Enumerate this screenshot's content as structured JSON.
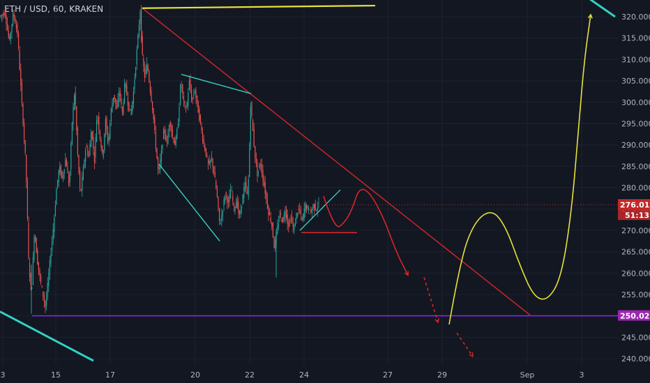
{
  "header": {
    "title": "ETH / USD, 60, KRAKEN"
  },
  "colors": {
    "background": "#131722",
    "up": "#26a69a",
    "down": "#ef5350",
    "grid": "#1e2230",
    "axis_text": "#b2b5be",
    "trendline_red": "#d62728",
    "cyan": "#33d1c4",
    "yellow": "#e7e33a",
    "purple": "#8e24ff",
    "price_badge": "#c62828",
    "support_badge": "#9c27b0"
  },
  "chart_data": {
    "type": "candlestick",
    "symbol": "ETH / USD",
    "interval": "60",
    "exchange": "KRAKEN",
    "ylim": [
      238.5,
      325
    ],
    "x_ticks": [
      "3",
      "15",
      "17",
      "20",
      "22",
      "24",
      "27",
      "29",
      "Sep",
      "3"
    ],
    "y_ticks": [
      "240.000",
      "245.000",
      "250.000",
      "255.000",
      "260.000",
      "265.000",
      "270.000",
      "275.000",
      "280.000",
      "285.000",
      "290.000",
      "295.000",
      "300.000",
      "305.000",
      "310.000",
      "315.000",
      "320.000"
    ],
    "y_tick_values": [
      240,
      245,
      250,
      255,
      260,
      265,
      270,
      275,
      280,
      285,
      290,
      295,
      300,
      305,
      310,
      315,
      320
    ],
    "last_price": {
      "label": "276.010",
      "value": 276.01,
      "countdown": "51:13"
    },
    "support_level": {
      "label": "250.023",
      "value": 250.023
    },
    "price_path": [
      [
        0,
        320
      ],
      [
        8,
        321
      ],
      [
        14,
        314
      ],
      [
        20,
        321
      ],
      [
        26,
        316
      ],
      [
        32,
        300
      ],
      [
        38,
        285
      ],
      [
        42,
        262
      ],
      [
        46,
        255
      ],
      [
        50,
        270
      ],
      [
        55,
        262
      ],
      [
        60,
        257
      ],
      [
        66,
        252
      ],
      [
        72,
        262
      ],
      [
        78,
        272
      ],
      [
        82,
        280
      ],
      [
        86,
        285
      ],
      [
        90,
        282
      ],
      [
        95,
        287
      ],
      [
        100,
        280
      ],
      [
        104,
        295
      ],
      [
        108,
        303
      ],
      [
        112,
        288
      ],
      [
        116,
        278
      ],
      [
        120,
        284
      ],
      [
        124,
        290
      ],
      [
        128,
        287
      ],
      [
        132,
        294
      ],
      [
        136,
        286
      ],
      [
        140,
        298
      ],
      [
        144,
        292
      ],
      [
        148,
        287
      ],
      [
        152,
        296
      ],
      [
        156,
        290
      ],
      [
        160,
        298
      ],
      [
        164,
        302
      ],
      [
        168,
        298
      ],
      [
        172,
        303
      ],
      [
        176,
        297
      ],
      [
        180,
        305
      ],
      [
        184,
        300
      ],
      [
        188,
        297
      ],
      [
        192,
        302
      ],
      [
        196,
        310
      ],
      [
        200,
        318
      ],
      [
        202,
        322
      ],
      [
        204,
        312
      ],
      [
        208,
        306
      ],
      [
        212,
        309
      ],
      [
        216,
        303
      ],
      [
        220,
        298
      ],
      [
        224,
        290
      ],
      [
        228,
        283
      ],
      [
        232,
        288
      ],
      [
        236,
        294
      ],
      [
        240,
        290
      ],
      [
        244,
        296
      ],
      [
        248,
        292
      ],
      [
        252,
        290
      ],
      [
        256,
        295
      ],
      [
        260,
        305
      ],
      [
        264,
        300
      ],
      [
        268,
        298
      ],
      [
        272,
        305
      ],
      [
        276,
        300
      ],
      [
        280,
        303
      ],
      [
        284,
        299
      ],
      [
        288,
        295
      ],
      [
        292,
        291
      ],
      [
        296,
        288
      ],
      [
        300,
        285
      ],
      [
        304,
        287
      ],
      [
        308,
        283
      ],
      [
        312,
        278
      ],
      [
        316,
        271
      ],
      [
        320,
        275
      ],
      [
        324,
        279
      ],
      [
        328,
        276
      ],
      [
        332,
        280
      ],
      [
        336,
        275
      ],
      [
        340,
        277
      ],
      [
        344,
        273
      ],
      [
        348,
        277
      ],
      [
        352,
        281
      ],
      [
        356,
        278
      ],
      [
        358,
        286
      ],
      [
        360,
        300
      ],
      [
        363,
        294
      ],
      [
        366,
        288
      ],
      [
        370,
        283
      ],
      [
        374,
        286
      ],
      [
        378,
        282
      ],
      [
        382,
        278
      ],
      [
        386,
        274
      ],
      [
        390,
        272
      ],
      [
        394,
        266
      ],
      [
        398,
        270
      ],
      [
        402,
        274
      ],
      [
        406,
        272
      ],
      [
        410,
        275
      ],
      [
        414,
        271
      ],
      [
        418,
        273
      ],
      [
        422,
        270
      ],
      [
        426,
        274
      ],
      [
        430,
        275
      ],
      [
        434,
        272
      ],
      [
        438,
        276
      ],
      [
        442,
        275
      ],
      [
        446,
        274
      ],
      [
        450,
        276
      ],
      [
        454,
        275
      ],
      [
        458,
        276
      ]
    ],
    "trendlines": [
      {
        "name": "descending-resistance",
        "color": "red",
        "from": [
          204,
          322
        ],
        "to": [
          760,
          250.2
        ]
      },
      {
        "name": "top-horizontal",
        "color": "yellow",
        "from": [
          204,
          322
        ],
        "to": [
          538,
          322.6
        ]
      },
      {
        "name": "support-line",
        "color": "purple",
        "from": [
          46,
          250.02
        ],
        "to": [
          886,
          250.02
        ]
      },
      {
        "name": "channel-upper",
        "color": "cyan",
        "from": [
          260,
          306.5
        ],
        "to": [
          360,
          302
        ]
      },
      {
        "name": "channel-lower",
        "color": "cyan",
        "from": [
          228,
          285.5
        ],
        "to": [
          315,
          267.5
        ]
      },
      {
        "name": "flag-rising",
        "color": "cyan",
        "from": [
          430,
          270
        ],
        "to": [
          488,
          279.5
        ]
      },
      {
        "name": "left-bottom-diagonal",
        "color": "cyan",
        "from": [
          0,
          251
        ],
        "to": [
          134,
          239.5
        ]
      },
      {
        "name": "top-right-diagonal",
        "color": "cyan",
        "from": [
          838,
          325
        ],
        "to": [
          882,
          320
        ]
      }
    ],
    "projections": [
      {
        "name": "red-short-curve",
        "color": "red",
        "points": [
          [
            464,
            278
          ],
          [
            480,
            270
          ],
          [
            495,
            272
          ],
          [
            505,
            275
          ],
          [
            515,
            280
          ],
          [
            530,
            279
          ],
          [
            550,
            273
          ],
          [
            568,
            265
          ],
          [
            585,
            259.5
          ]
        ]
      },
      {
        "name": "red-dashed-1",
        "color": "red",
        "dashed": true,
        "points": [
          [
            608,
            259
          ],
          [
            628,
            248.5
          ]
        ]
      },
      {
        "name": "red-dashed-2",
        "color": "red",
        "dashed": true,
        "points": [
          [
            655,
            246
          ],
          [
            678,
            240.5
          ]
        ]
      },
      {
        "name": "red-flat",
        "color": "red",
        "points": [
          [
            432,
            269.5
          ],
          [
            512,
            269.5
          ]
        ]
      },
      {
        "name": "yellow-projection",
        "color": "yellow",
        "points": [
          [
            644,
            248
          ],
          [
            660,
            263
          ],
          [
            680,
            272
          ],
          [
            705,
            275
          ],
          [
            725,
            271
          ],
          [
            745,
            262
          ],
          [
            765,
            254.5
          ],
          [
            785,
            253.5
          ],
          [
            805,
            259
          ],
          [
            820,
            275
          ],
          [
            830,
            295
          ],
          [
            838,
            310
          ],
          [
            847,
            320.5
          ]
        ]
      }
    ]
  }
}
